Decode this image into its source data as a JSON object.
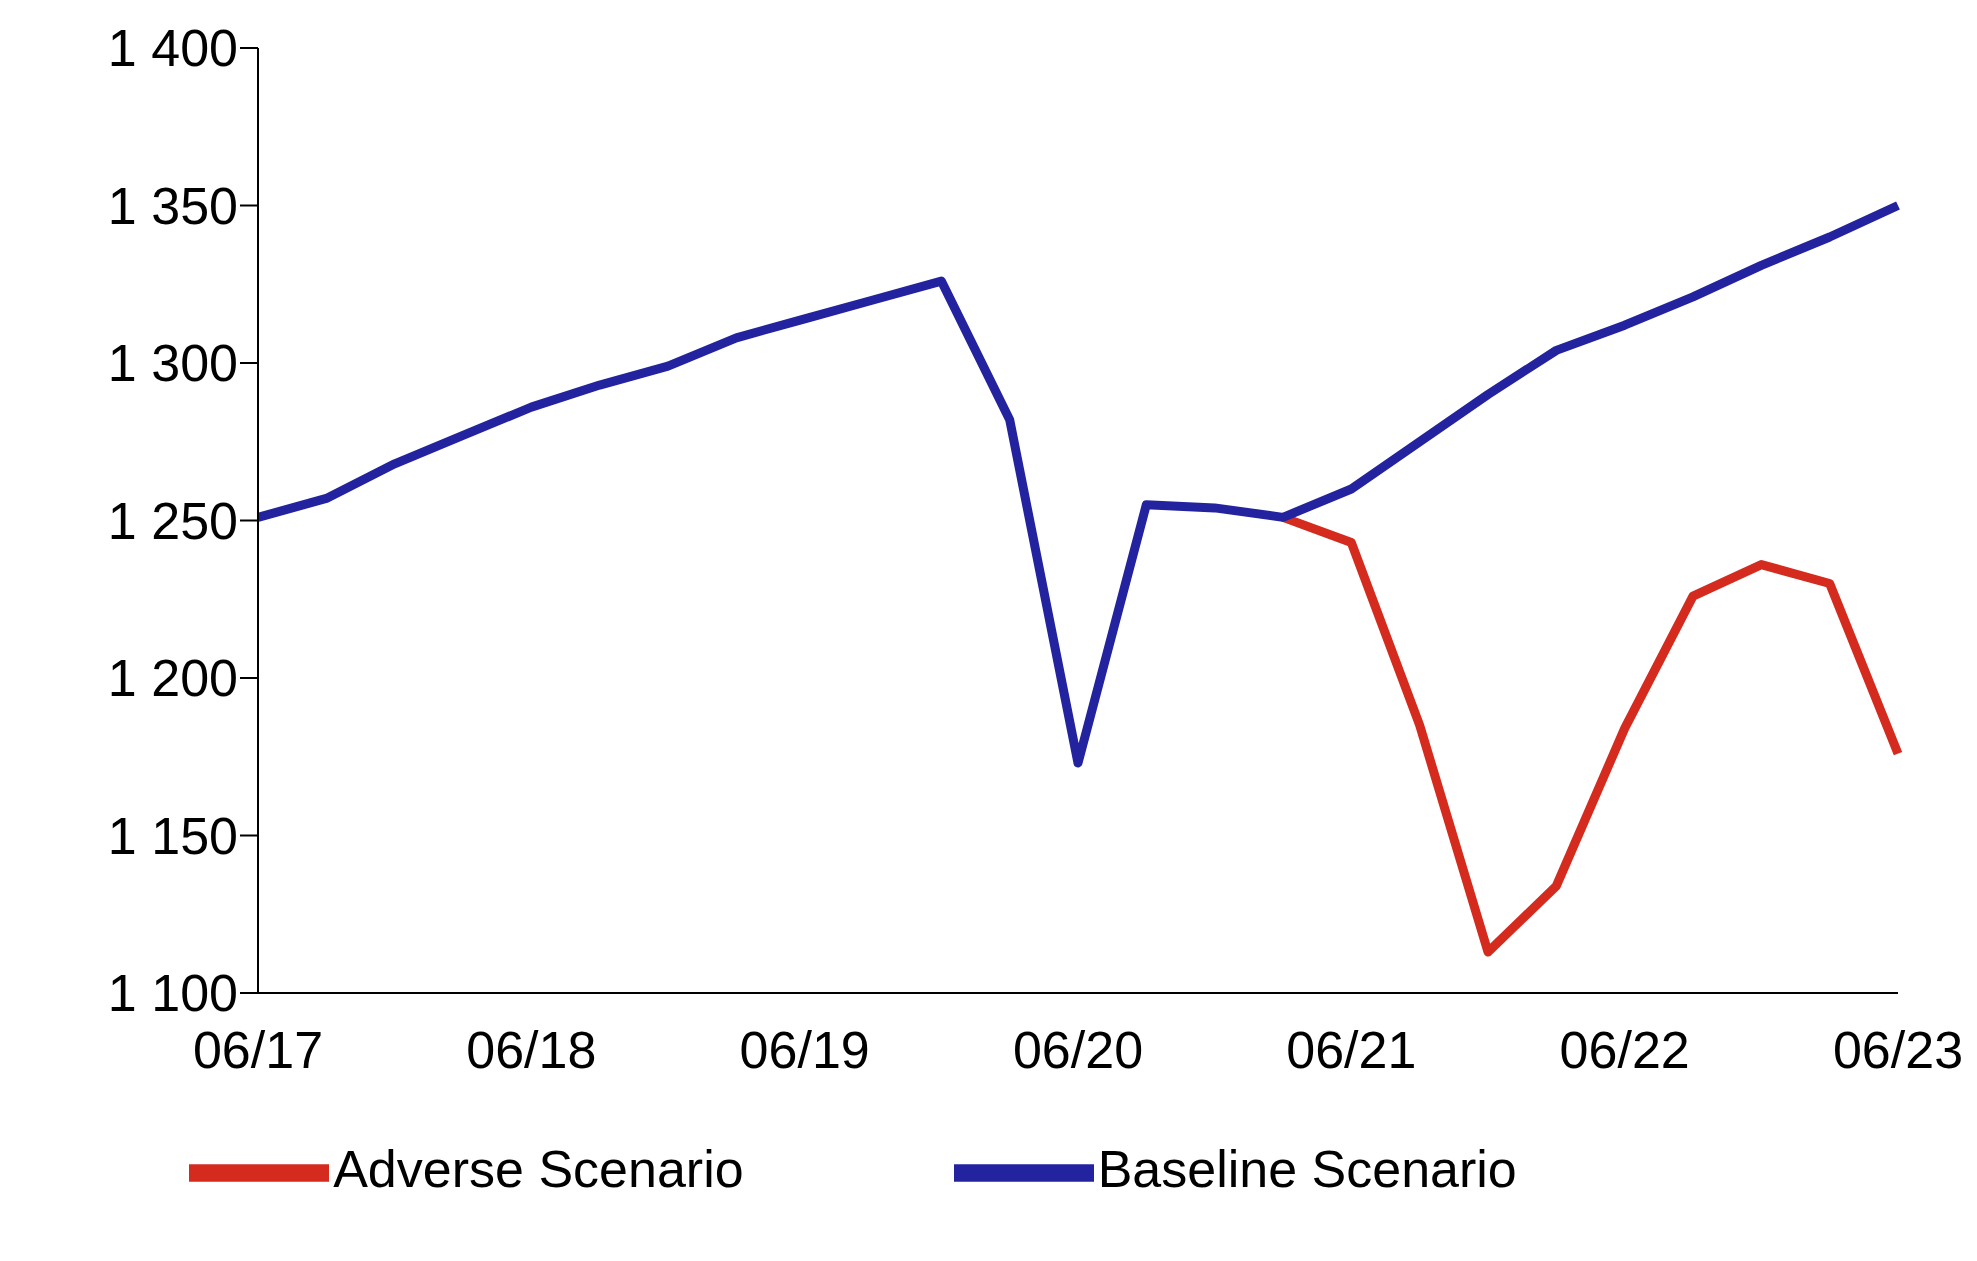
{
  "chart_data": {
    "type": "line",
    "categories": [
      "06/17",
      null,
      null,
      null,
      "06/18",
      null,
      null,
      null,
      "06/19",
      null,
      null,
      null,
      "06/20",
      null,
      null,
      null,
      "06/21",
      null,
      null,
      null,
      "06/22",
      null,
      null,
      null,
      "06/23"
    ],
    "series": [
      {
        "name": "Adverse Scenario",
        "color": "#d52b1e",
        "values": [
          null,
          null,
          null,
          null,
          null,
          null,
          null,
          null,
          null,
          null,
          null,
          null,
          null,
          null,
          null,
          1251,
          1243,
          1185,
          1113,
          1134,
          1184,
          1226,
          1236,
          1230,
          1176
        ]
      },
      {
        "name": "Baseline Scenario",
        "color": "#2323a0",
        "values": [
          1251,
          1257,
          1268,
          1277,
          1286,
          1293,
          1299,
          1308,
          1314,
          1320,
          1326,
          1282,
          1173,
          1255,
          1254,
          1251,
          1260,
          1275,
          1290,
          1304,
          1312,
          1321,
          1331,
          1340,
          1350
        ]
      }
    ],
    "ylim": [
      1100,
      1400
    ],
    "yticks": [
      {
        "value": 1100,
        "label": "1 100"
      },
      {
        "value": 1150,
        "label": "1 150"
      },
      {
        "value": 1200,
        "label": "1 200"
      },
      {
        "value": 1250,
        "label": "1 250"
      },
      {
        "value": 1300,
        "label": "1 300"
      },
      {
        "value": 1350,
        "label": "1 350"
      },
      {
        "value": 1400,
        "label": "1 400"
      }
    ],
    "grid": false,
    "legend": "bottom",
    "marker": "none",
    "line_style": "solid"
  }
}
